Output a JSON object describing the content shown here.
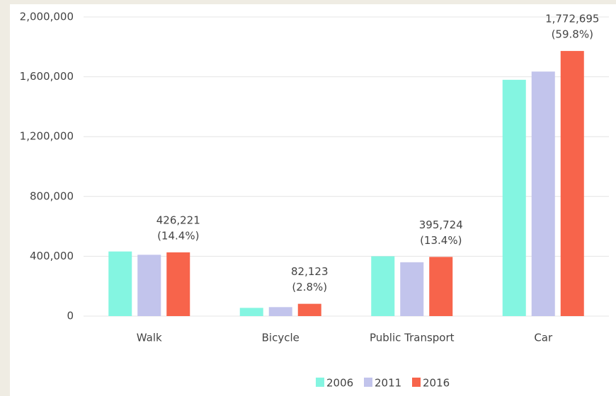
{
  "chart_data": {
    "type": "bar",
    "categories": [
      "Walk",
      "Bicycle",
      "Public Transport",
      "Car"
    ],
    "series": [
      {
        "name": "2006",
        "color": "#84f5e1",
        "values": [
          432000,
          55000,
          400000,
          1580000
        ]
      },
      {
        "name": "2011",
        "color": "#c2c4ec",
        "values": [
          410000,
          60000,
          360000,
          1635000
        ]
      },
      {
        "name": "2016",
        "color": "#f7644b",
        "values": [
          426221,
          82123,
          395724,
          1772695
        ],
        "value_labels": [
          [
            "426,221",
            "(14.4%)"
          ],
          [
            "82,123",
            "(2.8%)"
          ],
          [
            "395,724",
            "(13.4%)"
          ],
          [
            "1,772,695",
            "(59.8%)"
          ]
        ]
      }
    ],
    "ylim": [
      0,
      2000000
    ],
    "yticks": [
      0,
      {
        "value": 400000,
        "label": "400,000"
      },
      {
        "value": 800000,
        "label": "800,000"
      },
      {
        "value": 1200000,
        "label": "1,200,000"
      },
      {
        "value": 1600000,
        "label": "1,600,000"
      },
      {
        "value": 2000000,
        "label": "2,000,000"
      }
    ],
    "grid": true,
    "legend": "bottom"
  }
}
